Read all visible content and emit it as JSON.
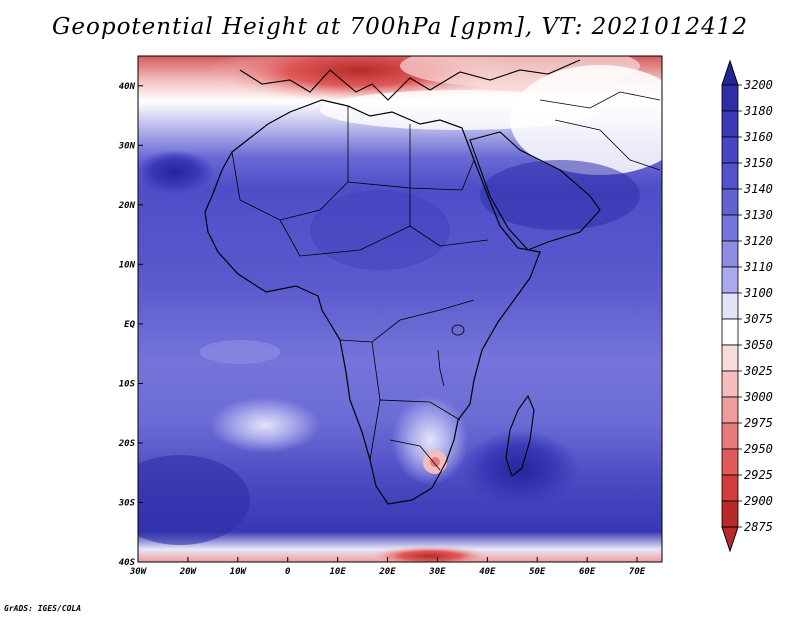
{
  "title": "Geopotential Height at 700hPa [gpm], VT: 2021012412",
  "credit": "GrADS: IGES/COLA",
  "map": {
    "lon_labels": [
      "30W",
      "20W",
      "10W",
      "0",
      "10E",
      "20E",
      "30E",
      "40E",
      "50E",
      "60E",
      "70E"
    ],
    "lat_labels": [
      "40N",
      "30N",
      "20N",
      "10N",
      "EQ",
      "10S",
      "20S",
      "30S",
      "40S"
    ],
    "lon_range": [
      -30,
      75
    ],
    "lat_range": [
      -40,
      45
    ]
  },
  "colorbar": {
    "levels": [
      "3200",
      "3180",
      "3160",
      "3150",
      "3140",
      "3130",
      "3120",
      "3110",
      "3100",
      "3075",
      "3050",
      "3025",
      "3000",
      "2975",
      "2950",
      "2925",
      "2900",
      "2875"
    ],
    "colors": [
      "#24249a",
      "#2e2ea8",
      "#3a3ab8",
      "#4646c2",
      "#5252ca",
      "#6262d2",
      "#7474da",
      "#8c8ce2",
      "#aaaaec",
      "#e4e4f8",
      "#ffffff",
      "#f8dcdc",
      "#f4bcbc",
      "#ee9c9c",
      "#e87c7c",
      "#e05a5a",
      "#d23c3c",
      "#b82a2a"
    ]
  }
}
